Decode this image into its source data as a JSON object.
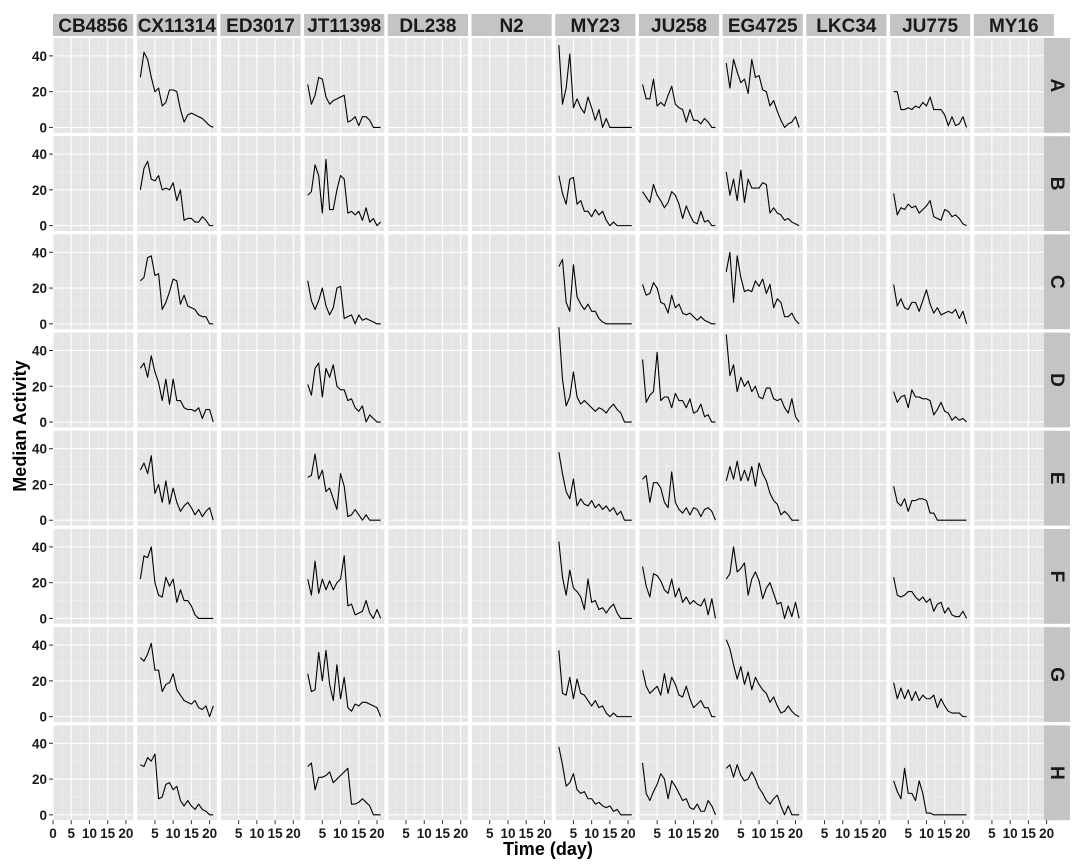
{
  "chart_data": {
    "type": "line",
    "xlabel": "Time (day)",
    "ylabel": "Median Activity",
    "xlim": [
      0,
      22
    ],
    "ylim": [
      -3,
      50
    ],
    "x_ticks": [
      0,
      5,
      10,
      15,
      20
    ],
    "y_ticks": [
      0,
      20,
      40
    ],
    "grid": true,
    "columns": [
      "CB4856",
      "CX11314",
      "ED3017",
      "JT11398",
      "DL238",
      "N2",
      "MY23",
      "JU258",
      "EG4725",
      "LKC34",
      "JU775",
      "MY16"
    ],
    "rows": [
      "A",
      "B",
      "C",
      "D",
      "E",
      "F",
      "G",
      "H"
    ],
    "x": [
      1,
      2,
      3,
      4,
      5,
      6,
      7,
      8,
      9,
      10,
      11,
      12,
      13,
      14,
      15,
      16,
      17,
      18,
      19,
      20,
      21
    ],
    "series": [
      {
        "column": "CX11314",
        "row": "A",
        "values": [
          28,
          42,
          38,
          28,
          20,
          22,
          12,
          14,
          21,
          21,
          20,
          10,
          3,
          7,
          8,
          7,
          6,
          5,
          3,
          1,
          0
        ]
      },
      {
        "column": "CX11314",
        "row": "B",
        "values": [
          20,
          32,
          36,
          26,
          25,
          28,
          20,
          21,
          20,
          24,
          14,
          20,
          3,
          4,
          4,
          2,
          2,
          5,
          3,
          0,
          0
        ]
      },
      {
        "column": "CX11314",
        "row": "C",
        "values": [
          24,
          26,
          37,
          38,
          27,
          28,
          8,
          12,
          18,
          25,
          24,
          11,
          16,
          10,
          9,
          8,
          5,
          4,
          4,
          0,
          0
        ]
      },
      {
        "column": "CX11314",
        "row": "D",
        "values": [
          30,
          33,
          25,
          37,
          28,
          22,
          12,
          24,
          10,
          24,
          12,
          12,
          8,
          7,
          7,
          6,
          8,
          2,
          7,
          7,
          0
        ]
      },
      {
        "column": "CX11314",
        "row": "E",
        "values": [
          28,
          32,
          26,
          36,
          15,
          20,
          10,
          22,
          9,
          18,
          10,
          5,
          8,
          10,
          7,
          3,
          6,
          2,
          5,
          7,
          0
        ]
      },
      {
        "column": "CX11314",
        "row": "F",
        "values": [
          22,
          35,
          34,
          40,
          20,
          13,
          12,
          23,
          18,
          22,
          9,
          16,
          10,
          10,
          7,
          2,
          0,
          0,
          0,
          0,
          0
        ]
      },
      {
        "column": "CX11314",
        "row": "G",
        "values": [
          33,
          31,
          35,
          41,
          26,
          26,
          14,
          18,
          19,
          24,
          15,
          12,
          9,
          8,
          7,
          9,
          5,
          4,
          6,
          0,
          6
        ]
      },
      {
        "column": "CX11314",
        "row": "H",
        "values": [
          28,
          27,
          32,
          30,
          34,
          9,
          10,
          17,
          18,
          14,
          16,
          8,
          5,
          8,
          5,
          3,
          6,
          3,
          2,
          0,
          0
        ]
      },
      {
        "column": "JT11398",
        "row": "A",
        "values": [
          24,
          13,
          18,
          28,
          27,
          17,
          13,
          15,
          16,
          17,
          18,
          3,
          4,
          6,
          1,
          6,
          6,
          4,
          0,
          0,
          0
        ]
      },
      {
        "column": "JT11398",
        "row": "B",
        "values": [
          17,
          19,
          34,
          28,
          7,
          37,
          9,
          9,
          20,
          28,
          26,
          7,
          8,
          6,
          8,
          3,
          10,
          2,
          4,
          0,
          2
        ]
      },
      {
        "column": "JT11398",
        "row": "C",
        "values": [
          24,
          13,
          8,
          13,
          20,
          10,
          5,
          9,
          20,
          21,
          3,
          4,
          5,
          0,
          5,
          2,
          3,
          2,
          1,
          0,
          0
        ]
      },
      {
        "column": "JT11398",
        "row": "D",
        "values": [
          21,
          15,
          30,
          33,
          14,
          30,
          25,
          32,
          20,
          18,
          18,
          12,
          13,
          8,
          6,
          9,
          0,
          4,
          2,
          0,
          0
        ]
      },
      {
        "column": "JT11398",
        "row": "E",
        "values": [
          24,
          25,
          37,
          23,
          28,
          16,
          18,
          12,
          6,
          26,
          19,
          2,
          3,
          6,
          3,
          0,
          3,
          0,
          0,
          0,
          0
        ]
      },
      {
        "column": "JT11398",
        "row": "F",
        "values": [
          22,
          13,
          32,
          14,
          22,
          16,
          21,
          16,
          20,
          22,
          35,
          7,
          8,
          2,
          3,
          4,
          10,
          3,
          0,
          5,
          0
        ]
      },
      {
        "column": "JT11398",
        "row": "G",
        "values": [
          24,
          14,
          15,
          36,
          20,
          37,
          18,
          9,
          29,
          10,
          22,
          5,
          3,
          7,
          6,
          8,
          8,
          7,
          6,
          5,
          0
        ]
      },
      {
        "column": "JT11398",
        "row": "H",
        "values": [
          27,
          29,
          14,
          21,
          21,
          22,
          24,
          18,
          20,
          22,
          24,
          26,
          6,
          6,
          7,
          9,
          7,
          5,
          0,
          0,
          0
        ]
      },
      {
        "column": "MY23",
        "row": "A",
        "values": [
          46,
          13,
          22,
          41,
          11,
          16,
          11,
          8,
          17,
          11,
          4,
          10,
          0,
          5,
          0,
          0,
          0,
          0,
          0,
          0,
          0
        ]
      },
      {
        "column": "MY23",
        "row": "B",
        "values": [
          28,
          18,
          12,
          26,
          27,
          12,
          14,
          8,
          8,
          5,
          9,
          6,
          8,
          3,
          0,
          2,
          0,
          0,
          0,
          0,
          0
        ]
      },
      {
        "column": "MY23",
        "row": "C",
        "values": [
          32,
          36,
          12,
          7,
          33,
          15,
          11,
          8,
          11,
          7,
          7,
          3,
          1,
          0,
          0,
          0,
          0,
          0,
          0,
          0,
          0
        ]
      },
      {
        "column": "MY23",
        "row": "D",
        "values": [
          53,
          24,
          9,
          14,
          28,
          14,
          10,
          12,
          10,
          8,
          6,
          8,
          7,
          5,
          8,
          10,
          7,
          5,
          0,
          0,
          0
        ]
      },
      {
        "column": "MY23",
        "row": "E",
        "values": [
          38,
          26,
          16,
          12,
          23,
          8,
          12,
          9,
          8,
          11,
          7,
          9,
          6,
          8,
          5,
          7,
          3,
          5,
          0,
          0,
          0
        ]
      },
      {
        "column": "MY23",
        "row": "F",
        "values": [
          43,
          23,
          13,
          27,
          17,
          15,
          12,
          5,
          22,
          9,
          10,
          5,
          6,
          3,
          6,
          8,
          3,
          0,
          0,
          0,
          0
        ]
      },
      {
        "column": "MY23",
        "row": "G",
        "values": [
          37,
          13,
          12,
          22,
          10,
          21,
          13,
          12,
          9,
          6,
          9,
          5,
          6,
          2,
          0,
          2,
          0,
          0,
          0,
          0,
          0
        ]
      },
      {
        "column": "MY23",
        "row": "H",
        "values": [
          38,
          28,
          16,
          18,
          23,
          14,
          12,
          13,
          9,
          9,
          6,
          7,
          5,
          4,
          5,
          2,
          3,
          0,
          0,
          0,
          0
        ]
      },
      {
        "column": "JU258",
        "row": "A",
        "values": [
          24,
          16,
          16,
          27,
          12,
          14,
          12,
          18,
          23,
          13,
          11,
          10,
          3,
          10,
          4,
          4,
          2,
          5,
          3,
          0,
          0
        ]
      },
      {
        "column": "JU258",
        "row": "B",
        "values": [
          19,
          16,
          13,
          23,
          17,
          14,
          10,
          13,
          19,
          17,
          12,
          4,
          11,
          6,
          2,
          1,
          8,
          2,
          3,
          0,
          0
        ]
      },
      {
        "column": "JU258",
        "row": "C",
        "values": [
          22,
          16,
          17,
          23,
          20,
          12,
          11,
          6,
          16,
          9,
          11,
          6,
          5,
          6,
          4,
          2,
          4,
          2,
          1,
          0,
          0
        ]
      },
      {
        "column": "JU258",
        "row": "D",
        "values": [
          35,
          11,
          15,
          17,
          39,
          12,
          14,
          14,
          8,
          16,
          12,
          12,
          8,
          13,
          5,
          6,
          10,
          3,
          4,
          0,
          0
        ]
      },
      {
        "column": "JU258",
        "row": "E",
        "values": [
          23,
          25,
          10,
          21,
          21,
          18,
          10,
          7,
          27,
          10,
          6,
          4,
          7,
          3,
          7,
          6,
          2,
          6,
          7,
          5,
          0
        ]
      },
      {
        "column": "JU258",
        "row": "F",
        "values": [
          29,
          18,
          12,
          25,
          24,
          21,
          16,
          14,
          22,
          12,
          17,
          9,
          12,
          8,
          10,
          8,
          7,
          11,
          2,
          11,
          0
        ]
      },
      {
        "column": "JU258",
        "row": "G",
        "values": [
          26,
          17,
          13,
          15,
          17,
          12,
          24,
          13,
          22,
          18,
          12,
          11,
          17,
          10,
          5,
          7,
          9,
          5,
          5,
          0,
          0
        ]
      },
      {
        "column": "JU258",
        "row": "H",
        "values": [
          29,
          12,
          8,
          13,
          17,
          23,
          20,
          9,
          19,
          16,
          12,
          8,
          9,
          4,
          3,
          6,
          2,
          2,
          8,
          5,
          0
        ]
      },
      {
        "column": "EG4725",
        "row": "A",
        "values": [
          36,
          22,
          38,
          31,
          25,
          27,
          19,
          38,
          28,
          29,
          21,
          20,
          12,
          15,
          9,
          4,
          0,
          2,
          3,
          6,
          0
        ]
      },
      {
        "column": "EG4725",
        "row": "B",
        "values": [
          30,
          17,
          26,
          14,
          31,
          13,
          26,
          21,
          21,
          21,
          24,
          23,
          7,
          10,
          7,
          6,
          3,
          4,
          2,
          1,
          0
        ]
      },
      {
        "column": "EG4725",
        "row": "C",
        "values": [
          29,
          40,
          12,
          38,
          26,
          18,
          19,
          18,
          24,
          21,
          25,
          17,
          22,
          9,
          14,
          12,
          4,
          4,
          6,
          2,
          0
        ]
      },
      {
        "column": "EG4725",
        "row": "D",
        "values": [
          49,
          26,
          32,
          17,
          25,
          20,
          23,
          17,
          20,
          14,
          13,
          19,
          19,
          13,
          12,
          13,
          8,
          5,
          13,
          3,
          0
        ]
      },
      {
        "column": "EG4725",
        "row": "E",
        "values": [
          22,
          30,
          23,
          33,
          22,
          28,
          22,
          30,
          19,
          32,
          26,
          22,
          15,
          11,
          9,
          3,
          5,
          3,
          0,
          0,
          0
        ]
      },
      {
        "column": "EG4725",
        "row": "F",
        "values": [
          22,
          25,
          40,
          26,
          28,
          31,
          13,
          22,
          26,
          21,
          11,
          17,
          20,
          14,
          8,
          9,
          0,
          7,
          1,
          9,
          0
        ]
      },
      {
        "column": "EG4725",
        "row": "G",
        "values": [
          43,
          38,
          29,
          21,
          28,
          18,
          25,
          15,
          22,
          18,
          15,
          13,
          8,
          11,
          6,
          2,
          3,
          6,
          3,
          1,
          0
        ]
      },
      {
        "column": "EG4725",
        "row": "H",
        "values": [
          26,
          28,
          21,
          28,
          22,
          19,
          20,
          24,
          20,
          15,
          12,
          8,
          6,
          9,
          11,
          5,
          0,
          5,
          0,
          0,
          0
        ]
      },
      {
        "column": "JU775",
        "row": "A",
        "values": [
          20,
          20,
          10,
          10,
          11,
          10,
          12,
          11,
          14,
          12,
          17,
          10,
          10,
          10,
          7,
          1,
          6,
          1,
          2,
          6,
          0
        ]
      },
      {
        "column": "JU775",
        "row": "B",
        "values": [
          18,
          6,
          10,
          9,
          12,
          10,
          11,
          7,
          9,
          11,
          14,
          5,
          4,
          3,
          9,
          8,
          5,
          6,
          4,
          1,
          0
        ]
      },
      {
        "column": "JU775",
        "row": "C",
        "values": [
          22,
          10,
          14,
          9,
          8,
          12,
          12,
          7,
          13,
          19,
          11,
          6,
          9,
          5,
          6,
          7,
          6,
          8,
          3,
          7,
          0
        ]
      },
      {
        "column": "JU775",
        "row": "D",
        "values": [
          17,
          11,
          14,
          15,
          8,
          18,
          14,
          14,
          13,
          13,
          12,
          4,
          7,
          11,
          6,
          5,
          1,
          3,
          1,
          2,
          0
        ]
      },
      {
        "column": "JU775",
        "row": "E",
        "values": [
          19,
          10,
          8,
          12,
          5,
          11,
          11,
          12,
          12,
          11,
          4,
          4,
          0,
          0,
          0,
          0,
          0,
          0,
          0,
          0,
          0
        ]
      },
      {
        "column": "JU775",
        "row": "F",
        "values": [
          23,
          13,
          12,
          13,
          15,
          15,
          12,
          10,
          12,
          9,
          11,
          4,
          8,
          9,
          3,
          6,
          2,
          1,
          1,
          4,
          0
        ]
      },
      {
        "column": "JU775",
        "row": "G",
        "values": [
          19,
          10,
          16,
          10,
          15,
          9,
          14,
          9,
          12,
          10,
          10,
          12,
          5,
          10,
          6,
          3,
          2,
          2,
          2,
          0,
          0
        ]
      },
      {
        "column": "JU775",
        "row": "H",
        "values": [
          19,
          13,
          9,
          26,
          12,
          12,
          8,
          19,
          12,
          1,
          1,
          0,
          0,
          0,
          0,
          0,
          0,
          0,
          0,
          0,
          0
        ]
      }
    ]
  },
  "colors": {
    "page_background": "#ffffff",
    "panel_background": "#e5e5e5",
    "grid_major": "#ffffff",
    "grid_minor": "#f0f0f0",
    "strip_background": "#c4c4c4",
    "line": "#000000"
  }
}
